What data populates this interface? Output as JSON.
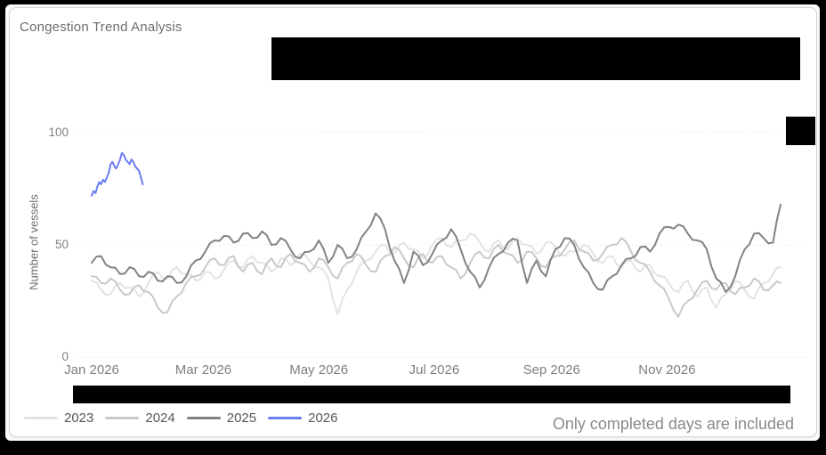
{
  "card": {
    "title": "Congestion Trend Analysis",
    "footnote": "Only completed days are included"
  },
  "chart_data": {
    "type": "line",
    "title": "Congestion Trend Analysis",
    "xlabel": "",
    "ylabel": "Number of vessels",
    "x_unit": "day_of_year",
    "ylim": [
      0,
      110
    ],
    "yticks": [
      0,
      50,
      100
    ],
    "grid": "dotted-horizontal",
    "legend_position": "bottom-left",
    "x_ticks": [
      {
        "day": 1,
        "label": "Jan 2026"
      },
      {
        "day": 60,
        "label": "Mar 2026"
      },
      {
        "day": 121,
        "label": "May 2026"
      },
      {
        "day": 182,
        "label": "Jul 2026"
      },
      {
        "day": 244,
        "label": "Sep 2026"
      },
      {
        "day": 305,
        "label": "Nov 2026"
      }
    ],
    "series": [
      {
        "name": "2023",
        "color": "#e3e3e3",
        "days": [
          1,
          6,
          11,
          16,
          21,
          26,
          31,
          36,
          41,
          46,
          51,
          56,
          61,
          66,
          71,
          76,
          81,
          86,
          91,
          96,
          101,
          106,
          111,
          116,
          121,
          126,
          131,
          136,
          141,
          146,
          151,
          156,
          161,
          166,
          171,
          176,
          181,
          186,
          191,
          196,
          201,
          206,
          211,
          216,
          221,
          226,
          231,
          236,
          241,
          246,
          251,
          256,
          261,
          266,
          271,
          276,
          281,
          286,
          291,
          296,
          301,
          306,
          311,
          316,
          321,
          326,
          331,
          336,
          341,
          346,
          351,
          356,
          361,
          365
        ],
        "values": [
          34,
          30,
          28,
          33,
          31,
          27,
          33,
          38,
          35,
          40,
          37,
          34,
          38,
          35,
          39,
          43,
          40,
          45,
          42,
          38,
          44,
          41,
          46,
          43,
          40,
          35,
          19,
          30,
          38,
          43,
          47,
          50,
          46,
          51,
          48,
          44,
          50,
          53,
          49,
          52,
          55,
          51,
          47,
          52,
          48,
          53,
          50,
          46,
          51,
          49,
          45,
          47,
          50,
          46,
          42,
          45,
          40,
          43,
          38,
          41,
          36,
          33,
          29,
          34,
          27,
          31,
          22,
          28,
          34,
          30,
          26,
          33,
          37,
          40
        ]
      },
      {
        "name": "2024",
        "color": "#c9c9c9",
        "days": [
          1,
          6,
          11,
          16,
          21,
          26,
          31,
          36,
          41,
          46,
          51,
          56,
          61,
          66,
          71,
          76,
          81,
          86,
          91,
          96,
          101,
          106,
          111,
          116,
          121,
          126,
          131,
          136,
          141,
          146,
          151,
          156,
          161,
          166,
          171,
          176,
          181,
          186,
          191,
          196,
          201,
          206,
          211,
          216,
          221,
          226,
          231,
          236,
          241,
          246,
          251,
          256,
          261,
          266,
          271,
          276,
          281,
          286,
          291,
          296,
          301,
          306,
          311,
          316,
          321,
          326,
          331,
          336,
          341,
          346,
          351,
          356,
          361,
          365
        ],
        "values": [
          36,
          33,
          35,
          30,
          28,
          32,
          29,
          22,
          20,
          27,
          33,
          36,
          40,
          44,
          41,
          45,
          38,
          42,
          37,
          44,
          40,
          46,
          42,
          38,
          44,
          40,
          35,
          42,
          46,
          41,
          38,
          45,
          49,
          44,
          40,
          46,
          42,
          45,
          40,
          35,
          42,
          47,
          44,
          50,
          46,
          42,
          47,
          44,
          40,
          45,
          48,
          52,
          47,
          43,
          46,
          50,
          53,
          47,
          42,
          38,
          32,
          26,
          18,
          25,
          30,
          34,
          30,
          33,
          28,
          31,
          35,
          30,
          32,
          33
        ]
      },
      {
        "name": "2025",
        "color": "#828282",
        "days": [
          1,
          6,
          11,
          16,
          21,
          26,
          31,
          36,
          41,
          46,
          51,
          56,
          61,
          66,
          71,
          76,
          81,
          86,
          91,
          96,
          101,
          106,
          111,
          116,
          121,
          126,
          131,
          136,
          141,
          146,
          151,
          156,
          161,
          166,
          171,
          176,
          181,
          186,
          191,
          196,
          201,
          206,
          211,
          216,
          221,
          226,
          231,
          236,
          241,
          246,
          251,
          256,
          261,
          266,
          271,
          276,
          281,
          286,
          291,
          296,
          301,
          306,
          311,
          316,
          321,
          326,
          331,
          336,
          341,
          346,
          351,
          356,
          361,
          365
        ],
        "values": [
          42,
          45,
          40,
          37,
          40,
          36,
          38,
          34,
          36,
          33,
          36,
          43,
          47,
          52,
          54,
          51,
          55,
          53,
          56,
          50,
          53,
          48,
          44,
          47,
          52,
          42,
          50,
          44,
          48,
          56,
          64,
          57,
          43,
          33,
          47,
          41,
          46,
          52,
          57,
          48,
          38,
          31,
          40,
          46,
          51,
          52,
          33,
          43,
          36,
          48,
          53,
          50,
          40,
          33,
          30,
          36,
          41,
          44,
          49,
          47,
          55,
          58,
          59,
          55,
          52,
          48,
          35,
          29,
          36,
          48,
          55,
          53,
          51,
          68
        ]
      },
      {
        "name": "2026",
        "color": "#6b7ef2",
        "days": [
          1,
          2,
          3,
          4,
          5,
          6,
          7,
          8,
          9,
          10,
          11,
          12,
          13,
          14,
          15,
          16,
          17,
          18,
          19,
          20,
          21,
          22,
          23,
          24,
          25,
          26,
          27,
          28
        ],
        "values": [
          72,
          74,
          73,
          76,
          78,
          77,
          79,
          78,
          80,
          82,
          86,
          87,
          85,
          84,
          86,
          88,
          91,
          90,
          88,
          87,
          86,
          88,
          87,
          85,
          84,
          83,
          80,
          77
        ]
      }
    ]
  }
}
